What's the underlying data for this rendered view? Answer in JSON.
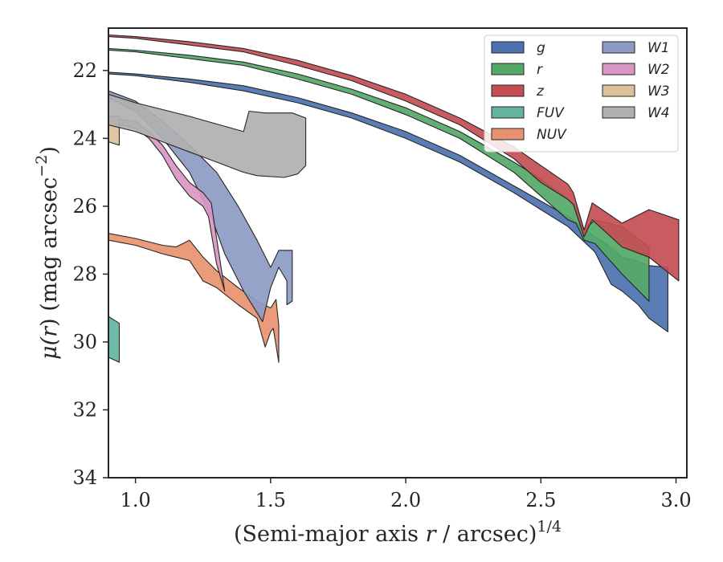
{
  "chart_data": {
    "type": "area",
    "xlabel": {
      "prefix": "(Semi-major axis ",
      "var": "r",
      "suffix": " / arcsec)",
      "sup": "1/4"
    },
    "ylabel": {
      "prefix": "μ(",
      "var": "r",
      "suffix": ") (mag arcsec",
      "sup": "−2",
      "close": ")"
    },
    "xlim": [
      0.9,
      3.04
    ],
    "ylim": [
      34,
      20.75
    ],
    "y_inverted": true,
    "xticks": [
      1.0,
      1.5,
      2.0,
      2.5,
      3.0
    ],
    "xtick_labels": [
      "1.0",
      "1.5",
      "2.0",
      "2.5",
      "3.0"
    ],
    "yticks": [
      22,
      24,
      26,
      28,
      30,
      32,
      34
    ],
    "ytick_labels": [
      "22",
      "24",
      "26",
      "28",
      "30",
      "32",
      "34"
    ],
    "grid": false,
    "legend_placement": "top-right",
    "legend_columns": 2,
    "series": [
      {
        "name": "g",
        "color": "#4c72b0",
        "upper": [
          [
            0.9,
            22.05
          ],
          [
            1.0,
            22.1
          ],
          [
            1.2,
            22.25
          ],
          [
            1.4,
            22.45
          ],
          [
            1.6,
            22.8
          ],
          [
            1.8,
            23.25
          ],
          [
            2.0,
            23.8
          ],
          [
            2.2,
            24.5
          ],
          [
            2.4,
            25.4
          ],
          [
            2.5,
            25.85
          ],
          [
            2.6,
            26.3
          ],
          [
            2.7,
            26.9
          ],
          [
            2.74,
            27.1
          ],
          [
            2.8,
            27.5
          ],
          [
            2.85,
            27.6
          ],
          [
            2.9,
            27.75
          ],
          [
            2.97,
            27.8
          ]
        ],
        "lower": [
          [
            2.97,
            29.7
          ],
          [
            2.9,
            29.3
          ],
          [
            2.86,
            28.9
          ],
          [
            2.8,
            28.5
          ],
          [
            2.76,
            28.3
          ],
          [
            2.7,
            27.35
          ],
          [
            2.6,
            26.6
          ],
          [
            2.5,
            26.1
          ],
          [
            2.4,
            25.6
          ],
          [
            2.2,
            24.7
          ],
          [
            2.0,
            24.0
          ],
          [
            1.8,
            23.4
          ],
          [
            1.6,
            22.95
          ],
          [
            1.4,
            22.6
          ],
          [
            1.2,
            22.35
          ],
          [
            1.0,
            22.15
          ],
          [
            0.9,
            22.1
          ]
        ]
      },
      {
        "name": "r",
        "color": "#55a868",
        "upper": [
          [
            0.9,
            21.35
          ],
          [
            1.0,
            21.4
          ],
          [
            1.2,
            21.55
          ],
          [
            1.4,
            21.75
          ],
          [
            1.6,
            22.1
          ],
          [
            1.8,
            22.55
          ],
          [
            2.0,
            23.1
          ],
          [
            2.2,
            23.8
          ],
          [
            2.4,
            24.7
          ],
          [
            2.5,
            25.2
          ],
          [
            2.6,
            25.8
          ],
          [
            2.63,
            26.0
          ],
          [
            2.66,
            26.7
          ],
          [
            2.7,
            26.4
          ],
          [
            2.8,
            26.6
          ],
          [
            2.9,
            27.2
          ]
        ],
        "lower": [
          [
            2.9,
            28.8
          ],
          [
            2.8,
            28.0
          ],
          [
            2.7,
            27.1
          ],
          [
            2.66,
            27.0
          ],
          [
            2.63,
            26.5
          ],
          [
            2.6,
            26.4
          ],
          [
            2.5,
            25.7
          ],
          [
            2.4,
            25.0
          ],
          [
            2.2,
            24.0
          ],
          [
            2.0,
            23.3
          ],
          [
            1.8,
            22.7
          ],
          [
            1.6,
            22.25
          ],
          [
            1.4,
            21.85
          ],
          [
            1.2,
            21.65
          ],
          [
            1.0,
            21.45
          ],
          [
            0.9,
            21.4
          ]
        ]
      },
      {
        "name": "z",
        "color": "#c44e52",
        "upper": [
          [
            0.9,
            20.95
          ],
          [
            1.0,
            21.0
          ],
          [
            1.2,
            21.15
          ],
          [
            1.4,
            21.35
          ],
          [
            1.6,
            21.7
          ],
          [
            1.8,
            22.15
          ],
          [
            2.0,
            22.7
          ],
          [
            2.2,
            23.4
          ],
          [
            2.4,
            24.25
          ],
          [
            2.5,
            24.8
          ],
          [
            2.6,
            25.35
          ],
          [
            2.62,
            25.6
          ],
          [
            2.66,
            26.7
          ],
          [
            2.69,
            25.9
          ],
          [
            2.8,
            26.5
          ],
          [
            2.9,
            26.1
          ],
          [
            3.01,
            26.4
          ]
        ],
        "lower": [
          [
            3.01,
            28.2
          ],
          [
            2.9,
            27.5
          ],
          [
            2.8,
            27.2
          ],
          [
            2.69,
            26.4
          ],
          [
            2.66,
            26.9
          ],
          [
            2.62,
            25.95
          ],
          [
            2.6,
            25.8
          ],
          [
            2.5,
            25.3
          ],
          [
            2.4,
            24.6
          ],
          [
            2.2,
            23.6
          ],
          [
            2.0,
            22.9
          ],
          [
            1.8,
            22.3
          ],
          [
            1.6,
            21.85
          ],
          [
            1.4,
            21.45
          ],
          [
            1.2,
            21.25
          ],
          [
            1.0,
            21.05
          ],
          [
            0.9,
            21.0
          ]
        ]
      },
      {
        "name": "FUV",
        "color": "#64b5a0",
        "upper": [
          [
            0.9,
            29.25
          ],
          [
            0.94,
            29.45
          ]
        ],
        "lower": [
          [
            0.94,
            30.6
          ],
          [
            0.9,
            30.45
          ]
        ]
      },
      {
        "name": "NUV",
        "color": "#e8936f",
        "upper": [
          [
            0.9,
            26.8
          ],
          [
            1.0,
            26.95
          ],
          [
            1.1,
            27.15
          ],
          [
            1.15,
            27.2
          ],
          [
            1.2,
            27.0
          ],
          [
            1.25,
            27.5
          ],
          [
            1.3,
            27.9
          ],
          [
            1.38,
            28.4
          ],
          [
            1.45,
            28.8
          ],
          [
            1.5,
            29.0
          ],
          [
            1.52,
            28.75
          ],
          [
            1.53,
            29.5
          ]
        ],
        "lower": [
          [
            1.53,
            30.6
          ],
          [
            1.51,
            29.6
          ],
          [
            1.5,
            29.7
          ],
          [
            1.48,
            30.15
          ],
          [
            1.45,
            29.3
          ],
          [
            1.38,
            28.9
          ],
          [
            1.3,
            28.4
          ],
          [
            1.25,
            28.2
          ],
          [
            1.2,
            27.6
          ],
          [
            1.15,
            27.5
          ],
          [
            1.1,
            27.4
          ],
          [
            1.0,
            27.15
          ],
          [
            0.9,
            27.0
          ]
        ]
      },
      {
        "name": "W1",
        "color": "#8c9bc4",
        "upper": [
          [
            0.9,
            22.6
          ],
          [
            1.0,
            22.9
          ],
          [
            1.1,
            23.5
          ],
          [
            1.2,
            24.2
          ],
          [
            1.3,
            25.0
          ],
          [
            1.38,
            26.0
          ],
          [
            1.45,
            27.0
          ],
          [
            1.5,
            27.8
          ],
          [
            1.53,
            27.3
          ],
          [
            1.58,
            27.3
          ],
          [
            1.58,
            28.8
          ]
        ],
        "lower": [
          [
            1.58,
            28.8
          ],
          [
            1.56,
            28.9
          ],
          [
            1.56,
            28.2
          ],
          [
            1.53,
            27.8
          ],
          [
            1.5,
            28.4
          ],
          [
            1.47,
            29.4
          ],
          [
            1.4,
            28.5
          ],
          [
            1.33,
            27.4
          ],
          [
            1.28,
            26.3
          ],
          [
            1.2,
            25.0
          ],
          [
            1.1,
            24.0
          ],
          [
            1.0,
            23.2
          ],
          [
            0.9,
            22.8
          ]
        ]
      },
      {
        "name": "W2",
        "color": "#da96c4",
        "upper": [
          [
            0.9,
            23.4
          ],
          [
            1.0,
            23.5
          ],
          [
            1.05,
            23.8
          ],
          [
            1.1,
            24.2
          ],
          [
            1.15,
            24.8
          ],
          [
            1.2,
            25.3
          ],
          [
            1.25,
            25.6
          ],
          [
            1.28,
            25.9
          ],
          [
            1.33,
            28.5
          ]
        ],
        "lower": [
          [
            1.33,
            28.5
          ],
          [
            1.3,
            27.7
          ],
          [
            1.27,
            26.3
          ],
          [
            1.25,
            26.0
          ],
          [
            1.2,
            25.7
          ],
          [
            1.15,
            25.2
          ],
          [
            1.1,
            24.5
          ],
          [
            1.05,
            24.0
          ],
          [
            1.0,
            23.7
          ],
          [
            0.9,
            23.5
          ]
        ]
      },
      {
        "name": "W3",
        "color": "#dcc09a",
        "upper": [
          [
            0.9,
            23.35
          ],
          [
            0.94,
            23.35
          ]
        ],
        "lower": [
          [
            0.94,
            24.2
          ],
          [
            0.9,
            24.1
          ]
        ]
      },
      {
        "name": "W4",
        "color": "#b0b0b0",
        "upper": [
          [
            0.9,
            22.7
          ],
          [
            1.0,
            22.95
          ],
          [
            1.2,
            23.35
          ],
          [
            1.4,
            23.8
          ],
          [
            1.42,
            23.2
          ],
          [
            1.48,
            23.25
          ],
          [
            1.58,
            23.25
          ],
          [
            1.63,
            23.4
          ]
        ],
        "lower": [
          [
            1.63,
            24.8
          ],
          [
            1.6,
            25.05
          ],
          [
            1.55,
            25.15
          ],
          [
            1.45,
            25.1
          ],
          [
            1.4,
            25.0
          ],
          [
            1.3,
            24.7
          ],
          [
            1.2,
            24.4
          ],
          [
            1.1,
            24.1
          ],
          [
            1.0,
            23.8
          ],
          [
            0.9,
            23.6
          ]
        ]
      }
    ]
  }
}
